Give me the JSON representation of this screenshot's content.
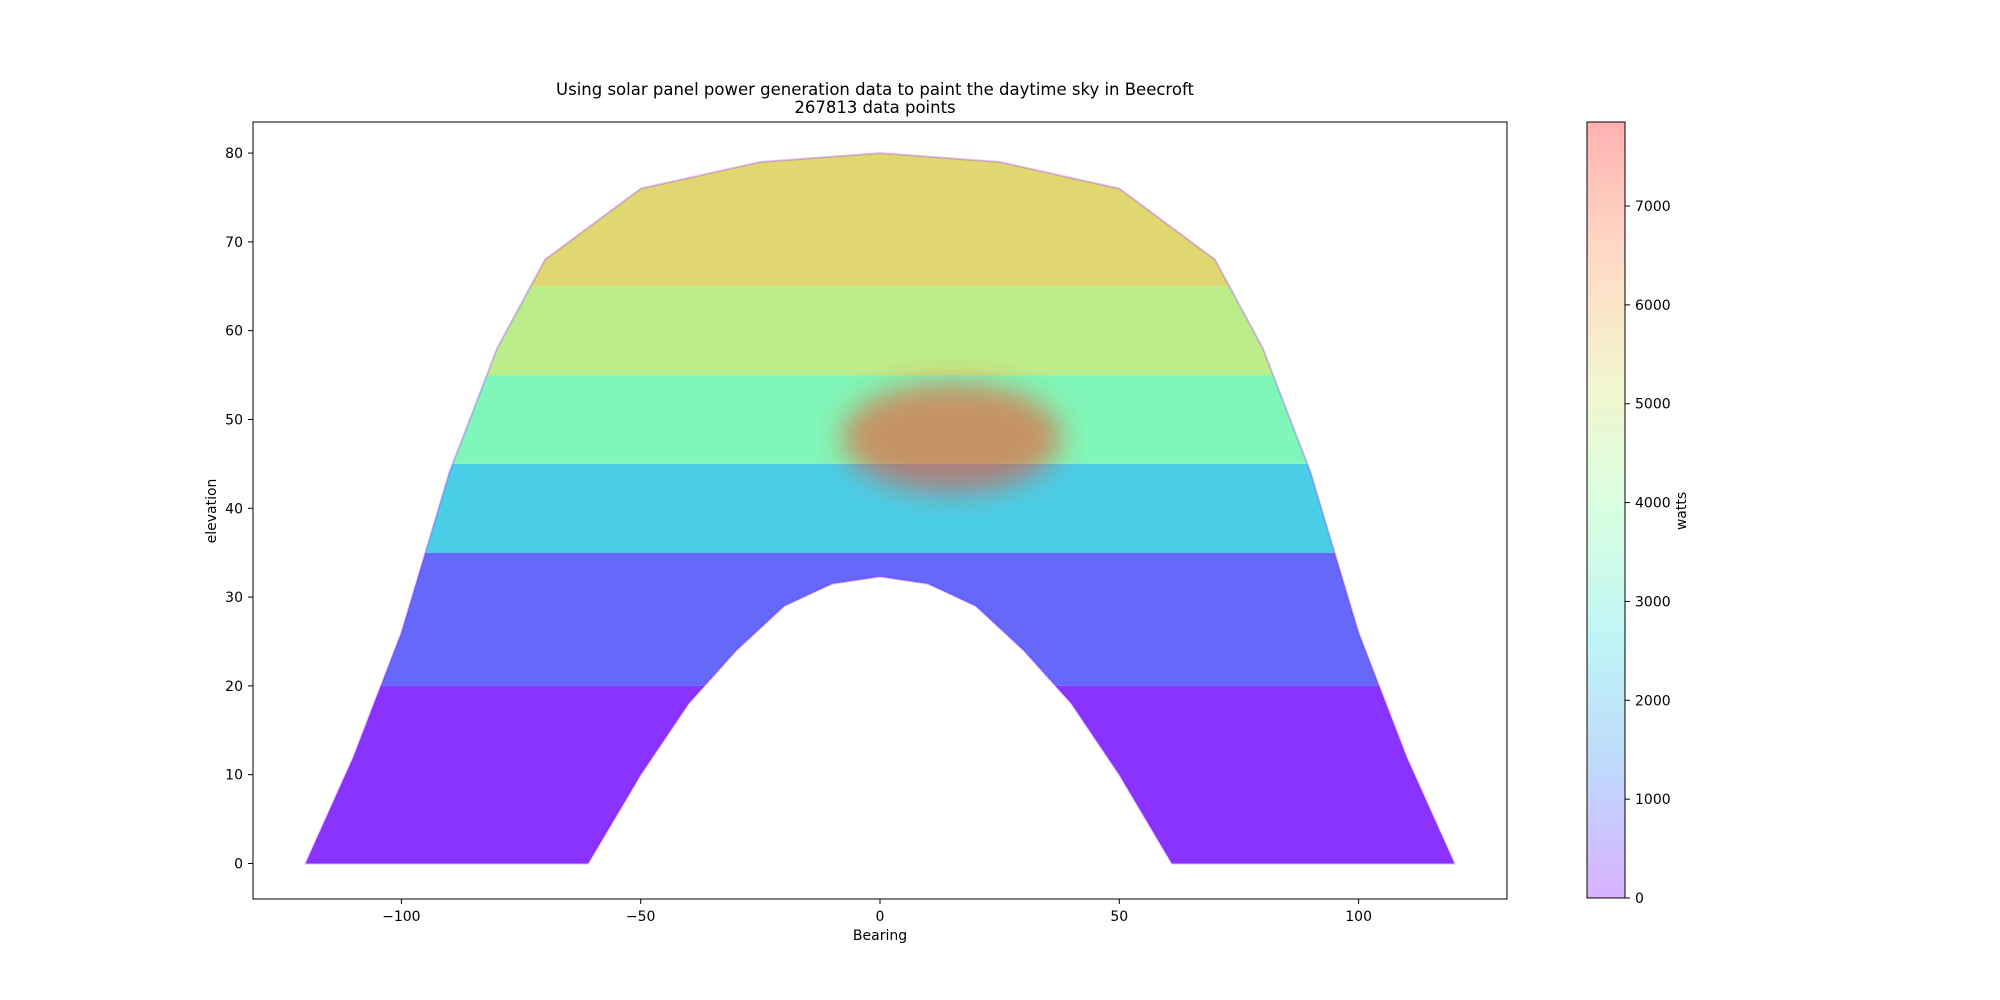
{
  "chart_data": {
    "type": "scatter",
    "title": "Using solar panel power generation data to paint the daytime sky in Beecroft",
    "subtitle": "267813 data points",
    "xlabel": "Bearing",
    "ylabel": "elevation",
    "xlim": [
      -131,
      131
    ],
    "ylim": [
      -4,
      83.5
    ],
    "xticks": [
      -100,
      -50,
      0,
      50,
      100
    ],
    "xtick_labels": [
      "−100",
      "−50",
      "0",
      "50",
      "100"
    ],
    "yticks": [
      0,
      10,
      20,
      30,
      40,
      50,
      60,
      70,
      80
    ],
    "ytick_labels": [
      "0",
      "10",
      "20",
      "30",
      "40",
      "50",
      "60",
      "70",
      "80"
    ],
    "grid": false,
    "point_alpha": 0.3,
    "colormap": "rainbow",
    "colormap_stops": [
      "#7f00ff",
      "#2a7ef5",
      "#2adddd",
      "#7ffe9c",
      "#d4dd5a",
      "#ff7e3f",
      "#ff0000"
    ],
    "colorbar": {
      "label": "watts",
      "range": [
        0,
        7850
      ],
      "ticks": [
        0,
        1000,
        2000,
        3000,
        4000,
        5000,
        6000,
        7000
      ],
      "tick_labels": [
        "0",
        "1000",
        "2000",
        "3000",
        "4000",
        "5000",
        "6000",
        "7000"
      ]
    },
    "sky_envelope": {
      "outer_curve": [
        {
          "bearing": -120,
          "elevation": 0
        },
        {
          "bearing": -110,
          "elevation": 12
        },
        {
          "bearing": -100,
          "elevation": 26
        },
        {
          "bearing": -90,
          "elevation": 44
        },
        {
          "bearing": -80,
          "elevation": 58
        },
        {
          "bearing": -70,
          "elevation": 68
        },
        {
          "bearing": -50,
          "elevation": 76
        },
        {
          "bearing": -25,
          "elevation": 79
        },
        {
          "bearing": 0,
          "elevation": 80
        },
        {
          "bearing": 25,
          "elevation": 79
        },
        {
          "bearing": 50,
          "elevation": 76
        },
        {
          "bearing": 70,
          "elevation": 68
        },
        {
          "bearing": 80,
          "elevation": 58
        },
        {
          "bearing": 90,
          "elevation": 44
        },
        {
          "bearing": 100,
          "elevation": 26
        },
        {
          "bearing": 110,
          "elevation": 12
        },
        {
          "bearing": 120,
          "elevation": 0
        }
      ],
      "inner_curve": [
        {
          "bearing": -61,
          "elevation": 0
        },
        {
          "bearing": -50,
          "elevation": 10
        },
        {
          "bearing": -40,
          "elevation": 18
        },
        {
          "bearing": -30,
          "elevation": 24
        },
        {
          "bearing": -20,
          "elevation": 29
        },
        {
          "bearing": -10,
          "elevation": 31.5
        },
        {
          "bearing": 0,
          "elevation": 32.3
        },
        {
          "bearing": 10,
          "elevation": 31.5
        },
        {
          "bearing": 20,
          "elevation": 29
        },
        {
          "bearing": 30,
          "elevation": 24
        },
        {
          "bearing": 40,
          "elevation": 18
        },
        {
          "bearing": 50,
          "elevation": 10
        },
        {
          "bearing": 61,
          "elevation": 0
        }
      ],
      "power_bands": [
        {
          "elevation_min": 0,
          "elevation_max": 20,
          "watts": 150
        },
        {
          "elevation_min": 20,
          "elevation_max": 35,
          "watts": 800
        },
        {
          "elevation_min": 35,
          "elevation_max": 45,
          "watts": 2300
        },
        {
          "elevation_min": 45,
          "elevation_max": 55,
          "watts": 3600
        },
        {
          "elevation_min": 55,
          "elevation_max": 65,
          "watts": 4700
        },
        {
          "elevation_min": 65,
          "elevation_max": 80,
          "watts": 5400
        }
      ],
      "hotspot": {
        "bearing": 15,
        "elevation": 48,
        "watts": 7200
      }
    }
  }
}
